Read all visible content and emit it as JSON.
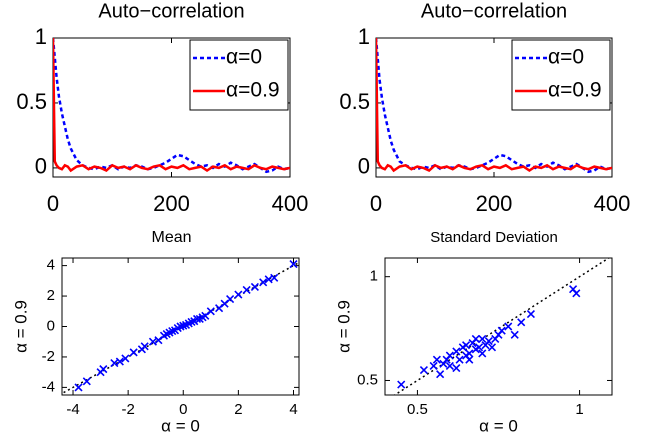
{
  "chart_data": [
    {
      "type": "line",
      "title": "Auto−correlation",
      "xlabel": "Mean",
      "x": [
        0,
        3,
        6,
        10,
        15,
        20,
        25,
        30,
        40,
        50,
        60,
        70,
        80,
        90,
        100,
        110,
        120,
        130,
        140,
        150,
        160,
        170,
        180,
        190,
        200,
        210,
        220,
        230,
        240,
        250,
        260,
        270,
        280,
        290,
        300,
        310,
        320,
        330,
        340,
        350,
        360,
        370,
        380,
        390,
        400
      ],
      "series": [
        {
          "name": "α=0",
          "color": "#0000ff",
          "dash": true,
          "values": [
            1,
            0.85,
            0.7,
            0.55,
            0.42,
            0.32,
            0.22,
            0.15,
            0.06,
            0.02,
            0,
            -0.01,
            0.01,
            0,
            0.02,
            -0.01,
            0.01,
            0,
            0.02,
            0.01,
            -0.01,
            0,
            0.02,
            0.04,
            0.07,
            0.1,
            0.09,
            0.06,
            0.03,
            0.01,
            0.02,
            0,
            0.03,
            0.01,
            0.04,
            0.02,
            -0.01,
            0.01,
            0.03,
            0,
            -0.03,
            -0.02,
            0.01,
            -0.01,
            0
          ]
        },
        {
          "name": "α=0.9",
          "color": "#ff0000",
          "dash": false,
          "values": [
            1,
            0.05,
            0.02,
            0,
            -0.01,
            0.02,
            0.01,
            -0.02,
            0.01,
            0.02,
            -0.01,
            0.01,
            0,
            -0.02,
            0.02,
            0,
            0.01,
            -0.01,
            0.02,
            0,
            -0.01,
            0.01,
            0.02,
            -0.01,
            0.01,
            0,
            0.02,
            -0.01,
            0,
            0.01,
            -0.02,
            0.01,
            0,
            0.02,
            -0.01,
            0.01,
            0,
            -0.01,
            0.02,
            0,
            -0.01,
            0.01,
            0,
            -0.01,
            0
          ]
        }
      ],
      "xlim": [
        0,
        400
      ],
      "ylim": [
        -0.07,
        1
      ],
      "xticks": [
        0,
        200,
        400
      ],
      "yticks": [
        0,
        0.5,
        1
      ],
      "legend": "upper right"
    },
    {
      "type": "line",
      "title": "Auto−correlation",
      "xlabel": "Standard Deviation",
      "x": [
        0,
        3,
        6,
        10,
        15,
        20,
        25,
        30,
        40,
        50,
        60,
        70,
        80,
        90,
        100,
        110,
        120,
        130,
        140,
        150,
        160,
        170,
        180,
        190,
        200,
        210,
        220,
        230,
        240,
        250,
        260,
        270,
        280,
        290,
        300,
        310,
        320,
        330,
        340,
        350,
        360,
        370,
        380,
        390,
        400
      ],
      "series": [
        {
          "name": "α=0",
          "color": "#0000ff",
          "dash": true,
          "values": [
            1,
            0.84,
            0.68,
            0.54,
            0.41,
            0.31,
            0.21,
            0.14,
            0.05,
            0.02,
            0,
            -0.01,
            0.01,
            0,
            0.02,
            -0.01,
            0.01,
            0,
            0.02,
            0.01,
            -0.01,
            0,
            0.02,
            0.04,
            0.07,
            0.1,
            0.09,
            0.06,
            0.03,
            0.01,
            0.02,
            0,
            0.03,
            0.01,
            0.04,
            0.02,
            -0.01,
            0.01,
            0.03,
            0,
            -0.03,
            -0.02,
            0.01,
            -0.01,
            0
          ]
        },
        {
          "name": "α=0.9",
          "color": "#ff0000",
          "dash": false,
          "values": [
            1,
            0.05,
            0.02,
            0,
            -0.01,
            0.02,
            0.01,
            -0.02,
            0.01,
            0.02,
            -0.01,
            0.01,
            0,
            -0.02,
            0.02,
            0,
            0.01,
            -0.01,
            0.02,
            0,
            -0.01,
            0.01,
            0.02,
            -0.01,
            0.01,
            0,
            0.02,
            -0.01,
            0,
            0.01,
            -0.02,
            0.01,
            0,
            0.02,
            -0.01,
            0.01,
            0,
            -0.01,
            0.02,
            0,
            -0.01,
            0.01,
            0,
            -0.01,
            0
          ]
        }
      ],
      "xlim": [
        0,
        400
      ],
      "ylim": [
        -0.07,
        1
      ],
      "xticks": [
        0,
        200,
        400
      ],
      "yticks": [
        0,
        0.5,
        1
      ],
      "legend": "upper right"
    },
    {
      "type": "scatter",
      "xlabel": "α = 0",
      "ylabel": "α = 0.9",
      "color": "#0000ff",
      "x": [
        -3.8,
        -3.5,
        -3.0,
        -2.9,
        -2.5,
        -2.3,
        -2.1,
        -1.8,
        -1.5,
        -1.4,
        -1.1,
        -0.9,
        -0.7,
        -0.6,
        -0.5,
        -0.4,
        -0.3,
        -0.2,
        -0.1,
        0.0,
        0.1,
        0.2,
        0.3,
        0.4,
        0.5,
        0.6,
        0.7,
        0.8,
        1.0,
        1.3,
        1.5,
        1.7,
        2.0,
        2.3,
        2.6,
        2.9,
        3.1,
        3.3,
        4.0
      ],
      "values": [
        -4.0,
        -3.6,
        -3.0,
        -2.8,
        -2.4,
        -2.3,
        -2.1,
        -1.7,
        -1.5,
        -1.3,
        -1.0,
        -0.9,
        -0.6,
        -0.5,
        -0.4,
        -0.3,
        -0.25,
        -0.1,
        0.0,
        0.05,
        0.1,
        0.2,
        0.3,
        0.35,
        0.5,
        0.5,
        0.6,
        0.7,
        1.0,
        1.2,
        1.5,
        1.8,
        2.1,
        2.4,
        2.6,
        2.9,
        3.1,
        3.2,
        4.1
      ],
      "xlim": [
        -4.4,
        4.2
      ],
      "ylim": [
        -4.5,
        4.5
      ],
      "xticks": [
        -4,
        -2,
        0,
        2,
        4
      ],
      "yticks": [
        -4,
        -2,
        0,
        2,
        4
      ],
      "diagonal": true
    },
    {
      "type": "scatter",
      "xlabel": "α = 0",
      "ylabel": "α = 0.9",
      "color": "#0000ff",
      "x": [
        0.45,
        0.52,
        0.55,
        0.56,
        0.58,
        0.6,
        0.6,
        0.62,
        0.63,
        0.64,
        0.65,
        0.66,
        0.67,
        0.68,
        0.69,
        0.7,
        0.71,
        0.72,
        0.73,
        0.74,
        0.75,
        0.76,
        0.78,
        0.8,
        0.82,
        0.85,
        0.98,
        0.99,
        0.57,
        0.62,
        0.66,
        0.7,
        0.59,
        0.65,
        0.68
      ],
      "values": [
        0.48,
        0.55,
        0.57,
        0.6,
        0.58,
        0.62,
        0.57,
        0.64,
        0.6,
        0.66,
        0.62,
        0.63,
        0.68,
        0.65,
        0.66,
        0.7,
        0.67,
        0.69,
        0.66,
        0.7,
        0.72,
        0.74,
        0.76,
        0.72,
        0.78,
        0.82,
        0.94,
        0.92,
        0.53,
        0.56,
        0.6,
        0.63,
        0.6,
        0.67,
        0.7
      ],
      "xlim": [
        0.4,
        1.1
      ],
      "ylim": [
        0.43,
        1.09
      ],
      "xticks": [
        0.5,
        1
      ],
      "yticks": [
        0.5,
        1
      ],
      "diagonal": true
    }
  ]
}
